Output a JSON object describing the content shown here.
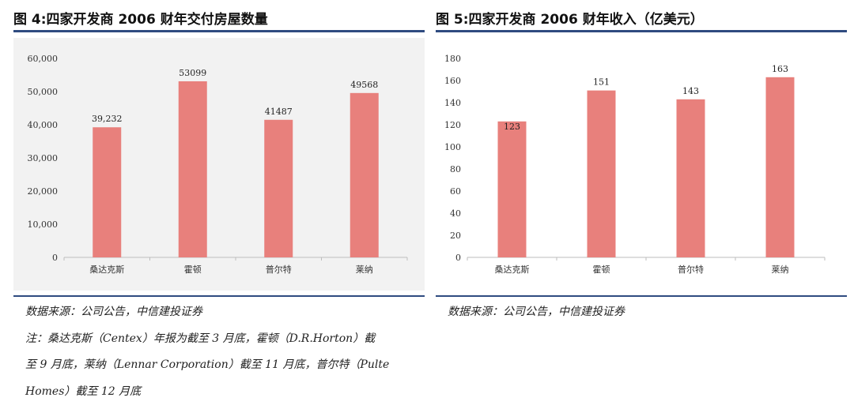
{
  "left": {
    "title": "图 4:四家开发商 2006 财年交付房屋数量",
    "source": "数据来源：公司公告，中信建投证券",
    "notes": [
      "注：桑达克斯（Centex）年报为截至 3 月底，霍顿（D.R.Horton）截",
      "至 9 月底，莱纳（Lennar Corporation）截至 11 月底，普尔特（Pulte",
      "Homes）截至 12 月底"
    ]
  },
  "right": {
    "title": "图 5:四家开发商 2006 财年收入（亿美元）",
    "source": "数据来源：公司公告，中信建投证券"
  },
  "chart_data": [
    {
      "type": "bar",
      "categories": [
        "桑达克斯",
        "霍顿",
        "普尔特",
        "莱纳"
      ],
      "values": [
        39232,
        53099,
        41487,
        49568
      ],
      "data_labels": [
        "39,232",
        "53099",
        "41487",
        "49568"
      ],
      "ylim": [
        0,
        60000
      ],
      "yticks": [
        0,
        10000,
        20000,
        30000,
        40000,
        50000,
        60000
      ],
      "ytick_labels": [
        "0",
        "10,000",
        "20,000",
        "30,000",
        "40,000",
        "50,000",
        "60,000"
      ],
      "bar_color": "#e8807c",
      "background": "#f2f2f2",
      "grid": false,
      "xlabel": "",
      "ylabel": ""
    },
    {
      "type": "bar",
      "categories": [
        "桑达克斯",
        "霍顿",
        "普尔特",
        "莱纳"
      ],
      "values": [
        123,
        151,
        143,
        163
      ],
      "data_labels": [
        "123",
        "151",
        "143",
        "163"
      ],
      "ylim": [
        0,
        180
      ],
      "yticks": [
        0,
        20,
        40,
        60,
        80,
        100,
        120,
        140,
        160,
        180
      ],
      "ytick_labels": [
        "0",
        "20",
        "40",
        "60",
        "80",
        "100",
        "120",
        "140",
        "160",
        "180"
      ],
      "bar_color": "#e8807c",
      "background": "#ffffff",
      "grid": false,
      "xlabel": "",
      "ylabel": ""
    }
  ],
  "colors": {
    "rule": "#2f4b80",
    "bar": "#e8807c"
  }
}
